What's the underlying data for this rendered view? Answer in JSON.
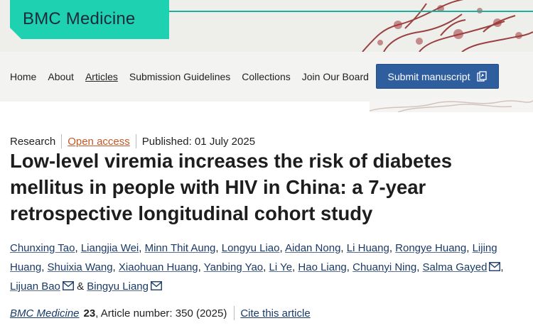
{
  "journal": {
    "name": "BMC Medicine"
  },
  "nav": {
    "items": [
      "Home",
      "About",
      "Articles",
      "Submission Guidelines",
      "Collections",
      "Join Our Board"
    ],
    "current": "Articles",
    "submit_label": "Submit manuscript"
  },
  "article": {
    "type": "Research",
    "access": "Open access",
    "published": "Published: 01 July 2025",
    "title": "Low-level viremia increases the risk of diabetes mellitus in people with HIV in China: a 7-year retrospective longitudinal cohort study",
    "authors": [
      {
        "name": "Chunxing Tao",
        "email": false
      },
      {
        "name": "Liangjia Wei",
        "email": false
      },
      {
        "name": "Minn Thit Aung",
        "email": false
      },
      {
        "name": "Longyu Liao",
        "email": false
      },
      {
        "name": "Aidan Nong",
        "email": false
      },
      {
        "name": "Li Huang",
        "email": false
      },
      {
        "name": "Rongye Huang",
        "email": false
      },
      {
        "name": "Lijing Huang",
        "email": false
      },
      {
        "name": "Shuixia Wang",
        "email": false
      },
      {
        "name": "Xiaohuan Huang",
        "email": false
      },
      {
        "name": "Yanbing Yao",
        "email": false
      },
      {
        "name": "Li Ye",
        "email": false
      },
      {
        "name": "Hao Liang",
        "email": false
      },
      {
        "name": "Chuanyi Ning",
        "email": false
      },
      {
        "name": "Salma Gayed",
        "email": true
      },
      {
        "name": "Lijuan Bao",
        "email": true
      },
      {
        "name": "Bingyu Liang",
        "email": true
      }
    ],
    "citation": {
      "journal": "BMC Medicine",
      "volume": "23",
      "details": ", Article number: 350 (2025)",
      "cite_label": "Cite this article"
    }
  },
  "colors": {
    "accent": "#1ed1b0",
    "button": "#2f5e9e",
    "open_access": "#c05a28",
    "link": "#1a3a66"
  }
}
